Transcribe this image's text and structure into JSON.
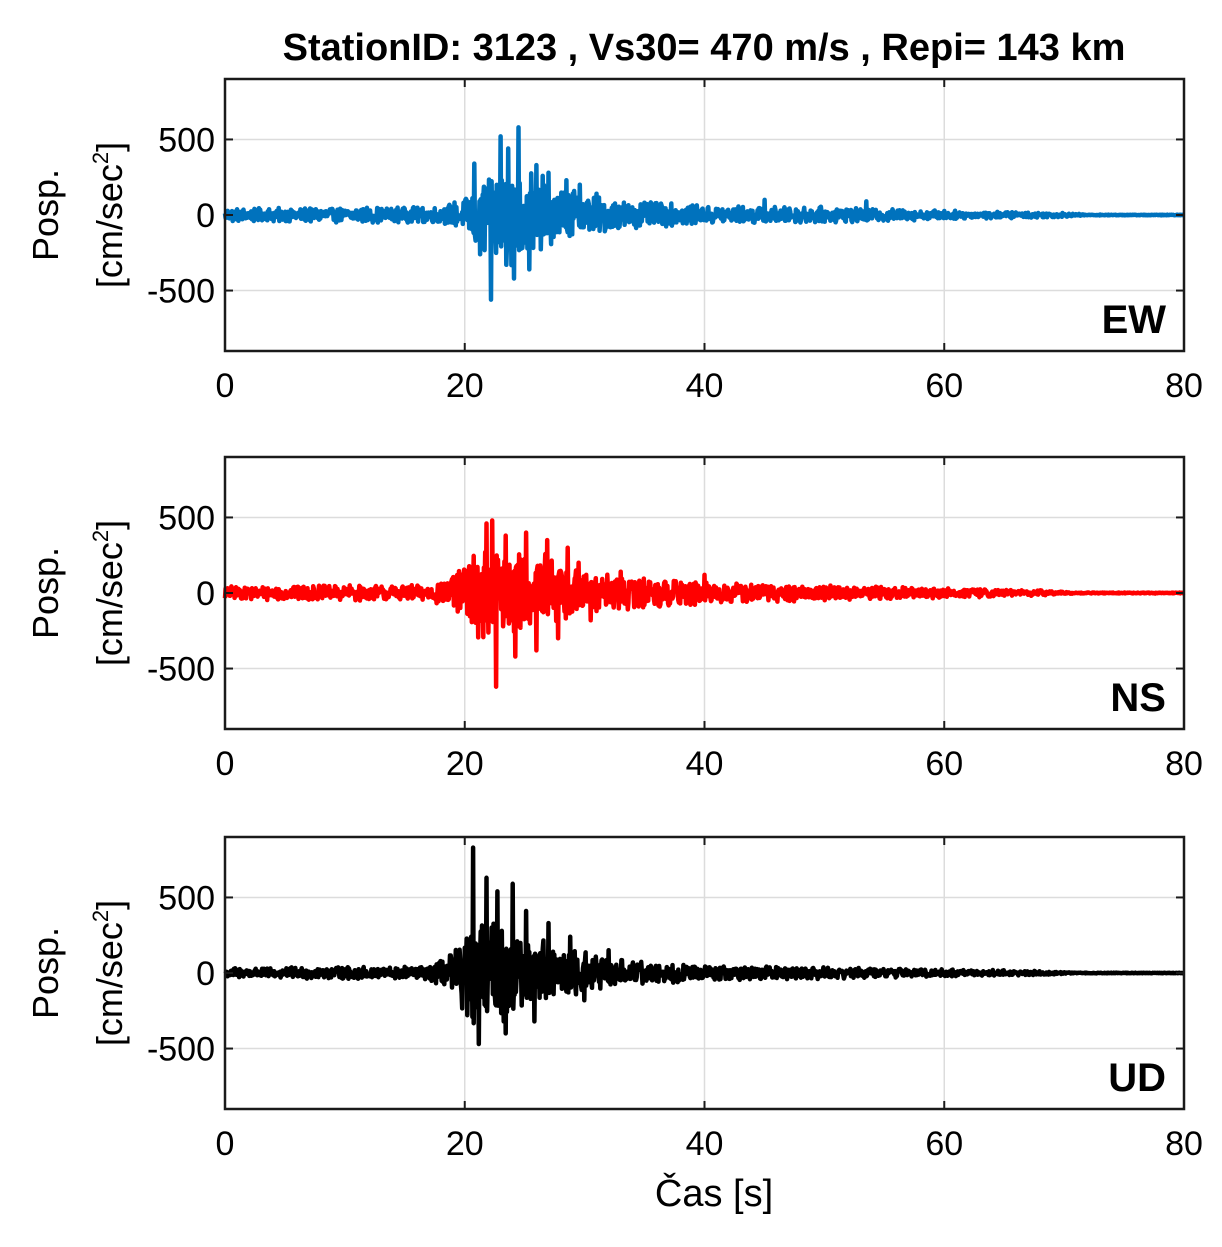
{
  "chart_data": {
    "type": "line",
    "title": "StationID: 3123 , Vs30= 470 m/s , Repi= 143 km",
    "xlabel": "Čas [s]",
    "ylabel_line1": "Posp.",
    "ylabel_line2": "[cm/sec",
    "ylabel_sup": "2",
    "ylabel_close": "]",
    "xlim": [
      0,
      80
    ],
    "ylim": [
      -900,
      900
    ],
    "xticks": [
      0,
      20,
      40,
      60,
      80
    ],
    "yticks": [
      -500,
      0,
      500
    ],
    "ytick_labels": [
      "-500",
      "0",
      "500"
    ],
    "grid": true,
    "panels": [
      {
        "component": "EW",
        "color": "#0072BD",
        "peaks": [
          {
            "x": 20.8,
            "y": 340
          },
          {
            "x": 21.3,
            "y": -260
          },
          {
            "x": 22.2,
            "y": -560
          },
          {
            "x": 23.0,
            "y": 520
          },
          {
            "x": 23.6,
            "y": 440
          },
          {
            "x": 24.1,
            "y": -420
          },
          {
            "x": 24.5,
            "y": 580
          },
          {
            "x": 25.4,
            "y": -360
          },
          {
            "x": 26.0,
            "y": 330
          },
          {
            "x": 27.0,
            "y": 280
          },
          {
            "x": 28.5,
            "y": 230
          },
          {
            "x": 29.6,
            "y": 200
          },
          {
            "x": 31.0,
            "y": 140
          },
          {
            "x": 45.0,
            "y": 100
          },
          {
            "x": 53.5,
            "y": 90
          }
        ],
        "envelope": [
          {
            "x": 0,
            "a": 45
          },
          {
            "x": 18,
            "a": 55
          },
          {
            "x": 20,
            "a": 110
          },
          {
            "x": 21,
            "a": 280
          },
          {
            "x": 24,
            "a": 360
          },
          {
            "x": 27,
            "a": 250
          },
          {
            "x": 30,
            "a": 140
          },
          {
            "x": 34,
            "a": 95
          },
          {
            "x": 40,
            "a": 60
          },
          {
            "x": 50,
            "a": 55
          },
          {
            "x": 60,
            "a": 30
          },
          {
            "x": 70,
            "a": 15
          },
          {
            "x": 72,
            "a": 3
          },
          {
            "x": 80,
            "a": 2
          }
        ]
      },
      {
        "component": "NS",
        "color": "#FF0000",
        "peaks": [
          {
            "x": 21.8,
            "y": 460
          },
          {
            "x": 22.3,
            "y": 480
          },
          {
            "x": 22.6,
            "y": -620
          },
          {
            "x": 23.4,
            "y": 380
          },
          {
            "x": 24.2,
            "y": -420
          },
          {
            "x": 25.1,
            "y": 400
          },
          {
            "x": 26.0,
            "y": -380
          },
          {
            "x": 26.9,
            "y": 350
          },
          {
            "x": 27.8,
            "y": -300
          },
          {
            "x": 28.6,
            "y": 300
          },
          {
            "x": 29.5,
            "y": 200
          },
          {
            "x": 30.5,
            "y": -180
          },
          {
            "x": 33.0,
            "y": 140
          },
          {
            "x": 40.0,
            "y": 120
          }
        ],
        "envelope": [
          {
            "x": 0,
            "a": 45
          },
          {
            "x": 17,
            "a": 55
          },
          {
            "x": 19,
            "a": 110
          },
          {
            "x": 21,
            "a": 300
          },
          {
            "x": 23,
            "a": 360
          },
          {
            "x": 27,
            "a": 260
          },
          {
            "x": 30,
            "a": 150
          },
          {
            "x": 34,
            "a": 110
          },
          {
            "x": 42,
            "a": 70
          },
          {
            "x": 50,
            "a": 55
          },
          {
            "x": 60,
            "a": 35
          },
          {
            "x": 68,
            "a": 20
          },
          {
            "x": 71,
            "a": 4
          },
          {
            "x": 80,
            "a": 3
          }
        ]
      },
      {
        "component": "UD",
        "color": "#000000",
        "peaks": [
          {
            "x": 20.7,
            "y": 830
          },
          {
            "x": 21.2,
            "y": -470
          },
          {
            "x": 21.8,
            "y": 630
          },
          {
            "x": 22.7,
            "y": 540
          },
          {
            "x": 23.4,
            "y": -400
          },
          {
            "x": 24.0,
            "y": 590
          },
          {
            "x": 25.1,
            "y": 410
          },
          {
            "x": 25.8,
            "y": -320
          },
          {
            "x": 27.0,
            "y": 330
          },
          {
            "x": 28.8,
            "y": 240
          },
          {
            "x": 30.0,
            "y": -180
          },
          {
            "x": 32.0,
            "y": 150
          }
        ],
        "envelope": [
          {
            "x": 0,
            "a": 35
          },
          {
            "x": 17,
            "a": 45
          },
          {
            "x": 19,
            "a": 150
          },
          {
            "x": 20.5,
            "a": 330
          },
          {
            "x": 23,
            "a": 370
          },
          {
            "x": 26,
            "a": 250
          },
          {
            "x": 29,
            "a": 160
          },
          {
            "x": 33,
            "a": 90
          },
          {
            "x": 40,
            "a": 50
          },
          {
            "x": 50,
            "a": 40
          },
          {
            "x": 60,
            "a": 25
          },
          {
            "x": 68,
            "a": 15
          },
          {
            "x": 71,
            "a": 3
          },
          {
            "x": 80,
            "a": 2
          }
        ]
      }
    ]
  }
}
